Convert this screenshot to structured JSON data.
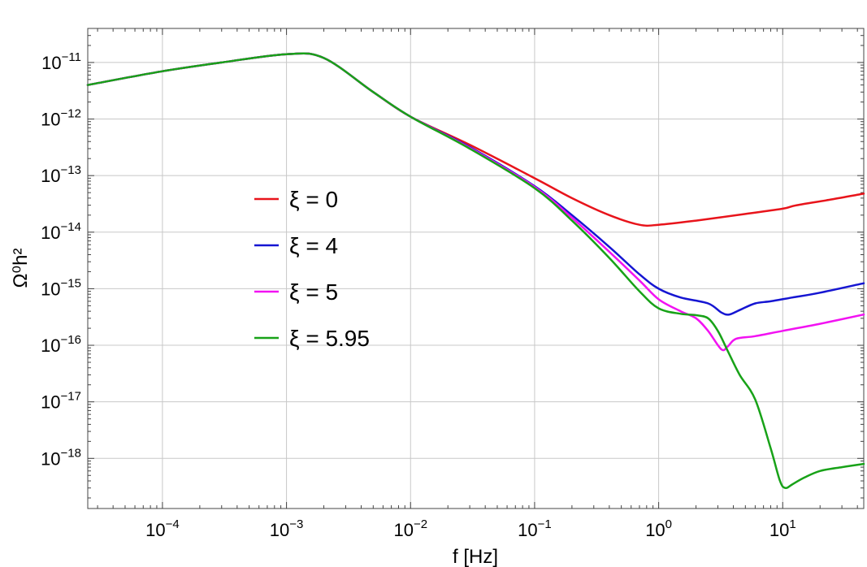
{
  "chart_data": {
    "type": "line",
    "title": "",
    "xlabel": "f [Hz]",
    "ylabel": "Ω⁰h²",
    "x_scale": "log",
    "y_scale": "log",
    "xlim": [
      2.5e-05,
      45
    ],
    "ylim": [
      1.3e-19,
      4e-11
    ],
    "grid": true,
    "legend_position": "center-left",
    "x_ticks": [
      {
        "base": "10",
        "exp": "−4",
        "value": 0.0001
      },
      {
        "base": "10",
        "exp": "−3",
        "value": 0.001
      },
      {
        "base": "10",
        "exp": "−2",
        "value": 0.01
      },
      {
        "base": "10",
        "exp": "−1",
        "value": 0.1
      },
      {
        "base": "10",
        "exp": "0",
        "value": 1
      },
      {
        "base": "10",
        "exp": "1",
        "value": 10
      }
    ],
    "y_ticks": [
      {
        "base": "10",
        "exp": "−11",
        "value": 1e-11
      },
      {
        "base": "10",
        "exp": "−12",
        "value": 1e-12
      },
      {
        "base": "10",
        "exp": "−13",
        "value": 1e-13
      },
      {
        "base": "10",
        "exp": "−14",
        "value": 1e-14
      },
      {
        "base": "10",
        "exp": "−15",
        "value": 1e-15
      },
      {
        "base": "10",
        "exp": "−16",
        "value": 1e-16
      },
      {
        "base": "10",
        "exp": "−17",
        "value": 1e-17
      },
      {
        "base": "10",
        "exp": "−18",
        "value": 1e-18
      }
    ],
    "series": [
      {
        "name": "ξ = 0",
        "color": "#e8141b",
        "points": [
          [
            2.5e-05,
            4e-12
          ],
          [
            0.0001,
            7e-12
          ],
          [
            0.0003,
            1e-11
          ],
          [
            0.001,
            1.4e-11
          ],
          [
            0.002,
            1.2e-11
          ],
          [
            0.005,
            3e-12
          ],
          [
            0.01,
            1.1e-12
          ],
          [
            0.03,
            3.5e-13
          ],
          [
            0.1,
            9e-14
          ],
          [
            0.2,
            4e-14
          ],
          [
            0.4,
            2e-14
          ],
          [
            0.7,
            1.35e-14
          ],
          [
            1.0,
            1.35e-14
          ],
          [
            2.0,
            1.6e-14
          ],
          [
            5.0,
            2.1e-14
          ],
          [
            10,
            2.6e-14
          ],
          [
            13,
            3e-14
          ],
          [
            25,
            3.8e-14
          ],
          [
            45,
            4.8e-14
          ]
        ]
      },
      {
        "name": "ξ = 4",
        "color": "#1515d2",
        "points": [
          [
            2.5e-05,
            4e-12
          ],
          [
            0.0001,
            7e-12
          ],
          [
            0.0003,
            1e-11
          ],
          [
            0.001,
            1.4e-11
          ],
          [
            0.002,
            1.2e-11
          ],
          [
            0.005,
            3e-12
          ],
          [
            0.01,
            1.1e-12
          ],
          [
            0.03,
            3.2e-13
          ],
          [
            0.1,
            6.5e-14
          ],
          [
            0.2,
            2e-14
          ],
          [
            0.4,
            5.5e-15
          ],
          [
            0.7,
            1.8e-15
          ],
          [
            1.0,
            1e-15
          ],
          [
            1.5,
            7e-16
          ],
          [
            2.5,
            5.5e-16
          ],
          [
            3.2,
            3.8e-16
          ],
          [
            3.7,
            3.5e-16
          ],
          [
            4.5,
            4.2e-16
          ],
          [
            6.0,
            5.5e-16
          ],
          [
            8.0,
            6e-16
          ],
          [
            12,
            7e-16
          ],
          [
            20,
            8.5e-16
          ],
          [
            45,
            1.25e-15
          ]
        ]
      },
      {
        "name": "ξ = 5",
        "color": "#f212f2",
        "points": [
          [
            2.5e-05,
            4e-12
          ],
          [
            0.0001,
            7e-12
          ],
          [
            0.0003,
            1e-11
          ],
          [
            0.001,
            1.4e-11
          ],
          [
            0.002,
            1.2e-11
          ],
          [
            0.005,
            3e-12
          ],
          [
            0.01,
            1.1e-12
          ],
          [
            0.03,
            3.1e-13
          ],
          [
            0.1,
            6.3e-14
          ],
          [
            0.2,
            1.8e-14
          ],
          [
            0.4,
            4.5e-15
          ],
          [
            0.7,
            1.4e-15
          ],
          [
            1.0,
            6.5e-16
          ],
          [
            1.5,
            4e-16
          ],
          [
            2.0,
            3e-16
          ],
          [
            2.5,
            1.8e-16
          ],
          [
            3.2,
            8.5e-17
          ],
          [
            3.6,
            9.5e-17
          ],
          [
            4.2,
            1.3e-16
          ],
          [
            6.0,
            1.45e-16
          ],
          [
            10,
            1.8e-16
          ],
          [
            20,
            2.4e-16
          ],
          [
            45,
            3.5e-16
          ]
        ]
      },
      {
        "name": "ξ = 5.95",
        "color": "#18a218",
        "points": [
          [
            2.5e-05,
            4e-12
          ],
          [
            0.0001,
            7e-12
          ],
          [
            0.0003,
            1e-11
          ],
          [
            0.001,
            1.4e-11
          ],
          [
            0.002,
            1.2e-11
          ],
          [
            0.005,
            3e-12
          ],
          [
            0.01,
            1.1e-12
          ],
          [
            0.03,
            3e-13
          ],
          [
            0.1,
            6e-14
          ],
          [
            0.2,
            1.6e-14
          ],
          [
            0.4,
            3.5e-15
          ],
          [
            0.7,
            9e-16
          ],
          [
            1.0,
            4.5e-16
          ],
          [
            1.5,
            3.6e-16
          ],
          [
            2.0,
            3.4e-16
          ],
          [
            2.5,
            3e-16
          ],
          [
            3.0,
            1.8e-16
          ],
          [
            3.6,
            8e-17
          ],
          [
            4.5,
            3e-17
          ],
          [
            6.0,
            1.1e-17
          ],
          [
            8.0,
            1.5e-18
          ],
          [
            9.5,
            4e-19
          ],
          [
            10.5,
            3e-19
          ],
          [
            12,
            3.5e-19
          ],
          [
            15,
            4.6e-19
          ],
          [
            20,
            6e-19
          ],
          [
            30,
            7e-19
          ],
          [
            45,
            8e-19
          ]
        ]
      }
    ]
  }
}
